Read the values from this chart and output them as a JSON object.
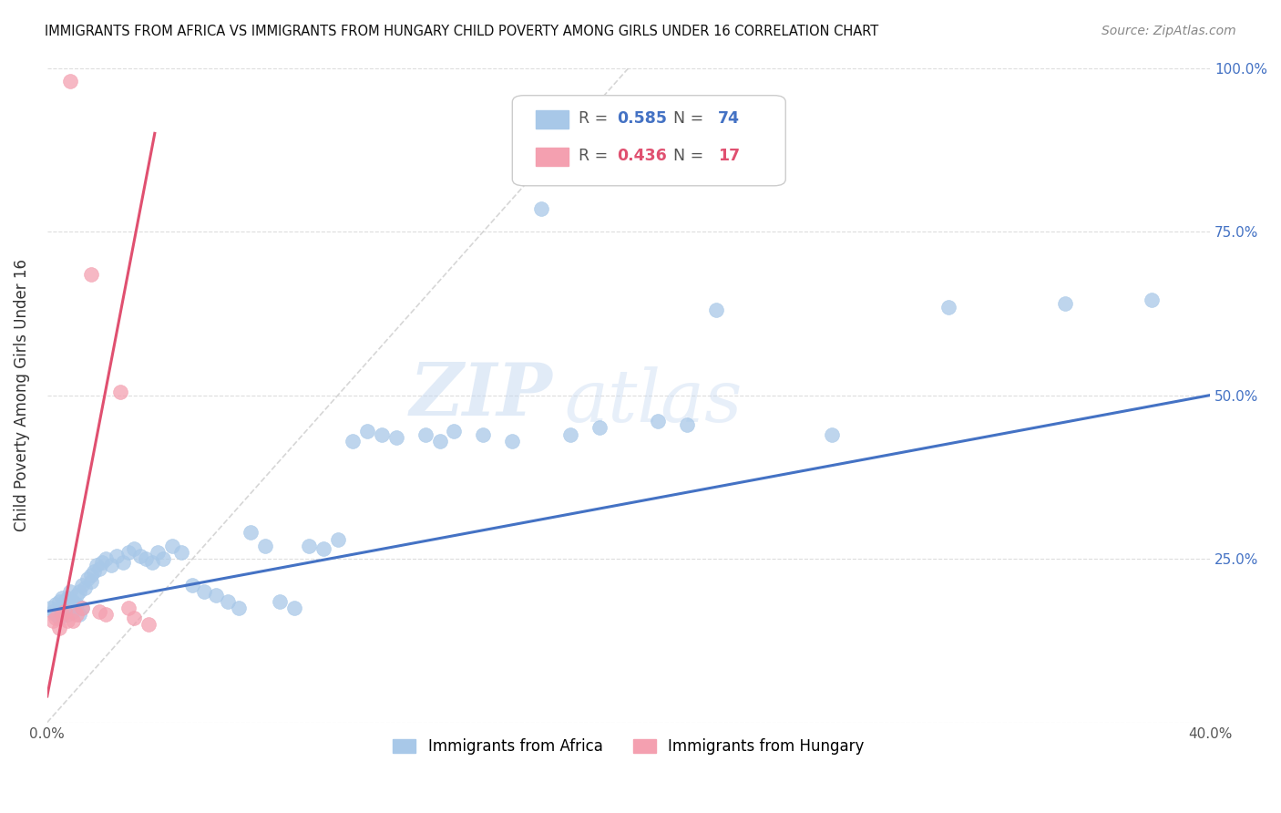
{
  "title": "IMMIGRANTS FROM AFRICA VS IMMIGRANTS FROM HUNGARY CHILD POVERTY AMONG GIRLS UNDER 16 CORRELATION CHART",
  "source": "Source: ZipAtlas.com",
  "ylabel": "Child Poverty Among Girls Under 16",
  "xlim": [
    0.0,
    0.4
  ],
  "ylim": [
    0.0,
    1.0
  ],
  "legend1_label": "Immigrants from Africa",
  "legend2_label": "Immigrants from Hungary",
  "R1": "0.585",
  "N1": "74",
  "R2": "0.436",
  "N2": "17",
  "color_africa": "#a8c8e8",
  "color_hungary": "#f4a0b0",
  "color_africa_line": "#4472c4",
  "color_hungary_line": "#e05070",
  "color_africa_text": "#4472c4",
  "color_hungary_text": "#e05070",
  "watermark_zip": "ZIP",
  "watermark_atlas": "atlas",
  "africa_x": [
    0.001,
    0.002,
    0.003,
    0.003,
    0.004,
    0.004,
    0.005,
    0.005,
    0.006,
    0.006,
    0.007,
    0.007,
    0.008,
    0.008,
    0.009,
    0.009,
    0.01,
    0.01,
    0.011,
    0.011,
    0.012,
    0.012,
    0.013,
    0.014,
    0.015,
    0.015,
    0.016,
    0.017,
    0.018,
    0.019,
    0.02,
    0.022,
    0.024,
    0.026,
    0.028,
    0.03,
    0.032,
    0.034,
    0.036,
    0.038,
    0.04,
    0.043,
    0.046,
    0.05,
    0.054,
    0.058,
    0.062,
    0.066,
    0.07,
    0.075,
    0.08,
    0.085,
    0.09,
    0.095,
    0.1,
    0.105,
    0.11,
    0.115,
    0.12,
    0.13,
    0.135,
    0.14,
    0.15,
    0.16,
    0.17,
    0.18,
    0.19,
    0.21,
    0.22,
    0.23,
    0.27,
    0.31,
    0.35,
    0.38
  ],
  "africa_y": [
    0.175,
    0.17,
    0.18,
    0.165,
    0.185,
    0.16,
    0.175,
    0.19,
    0.17,
    0.185,
    0.165,
    0.19,
    0.175,
    0.2,
    0.17,
    0.185,
    0.18,
    0.195,
    0.165,
    0.2,
    0.175,
    0.21,
    0.205,
    0.22,
    0.215,
    0.225,
    0.23,
    0.24,
    0.235,
    0.245,
    0.25,
    0.24,
    0.255,
    0.245,
    0.26,
    0.265,
    0.255,
    0.25,
    0.245,
    0.26,
    0.25,
    0.27,
    0.26,
    0.21,
    0.2,
    0.195,
    0.185,
    0.175,
    0.29,
    0.27,
    0.185,
    0.175,
    0.27,
    0.265,
    0.28,
    0.43,
    0.445,
    0.44,
    0.435,
    0.44,
    0.43,
    0.445,
    0.44,
    0.43,
    0.785,
    0.44,
    0.45,
    0.46,
    0.455,
    0.63,
    0.44,
    0.635,
    0.64,
    0.645
  ],
  "hungary_x": [
    0.002,
    0.003,
    0.004,
    0.005,
    0.006,
    0.007,
    0.008,
    0.009,
    0.01,
    0.012,
    0.015,
    0.018,
    0.02,
    0.025,
    0.028,
    0.03,
    0.035
  ],
  "hungary_y": [
    0.155,
    0.16,
    0.145,
    0.165,
    0.17,
    0.155,
    0.98,
    0.155,
    0.165,
    0.175,
    0.685,
    0.17,
    0.165,
    0.505,
    0.175,
    0.16,
    0.15
  ],
  "africa_trend_x": [
    0.0,
    0.4
  ],
  "africa_trend_y": [
    0.17,
    0.5
  ],
  "hungary_trend_x": [
    0.0,
    0.037
  ],
  "hungary_trend_y": [
    0.04,
    0.9
  ]
}
